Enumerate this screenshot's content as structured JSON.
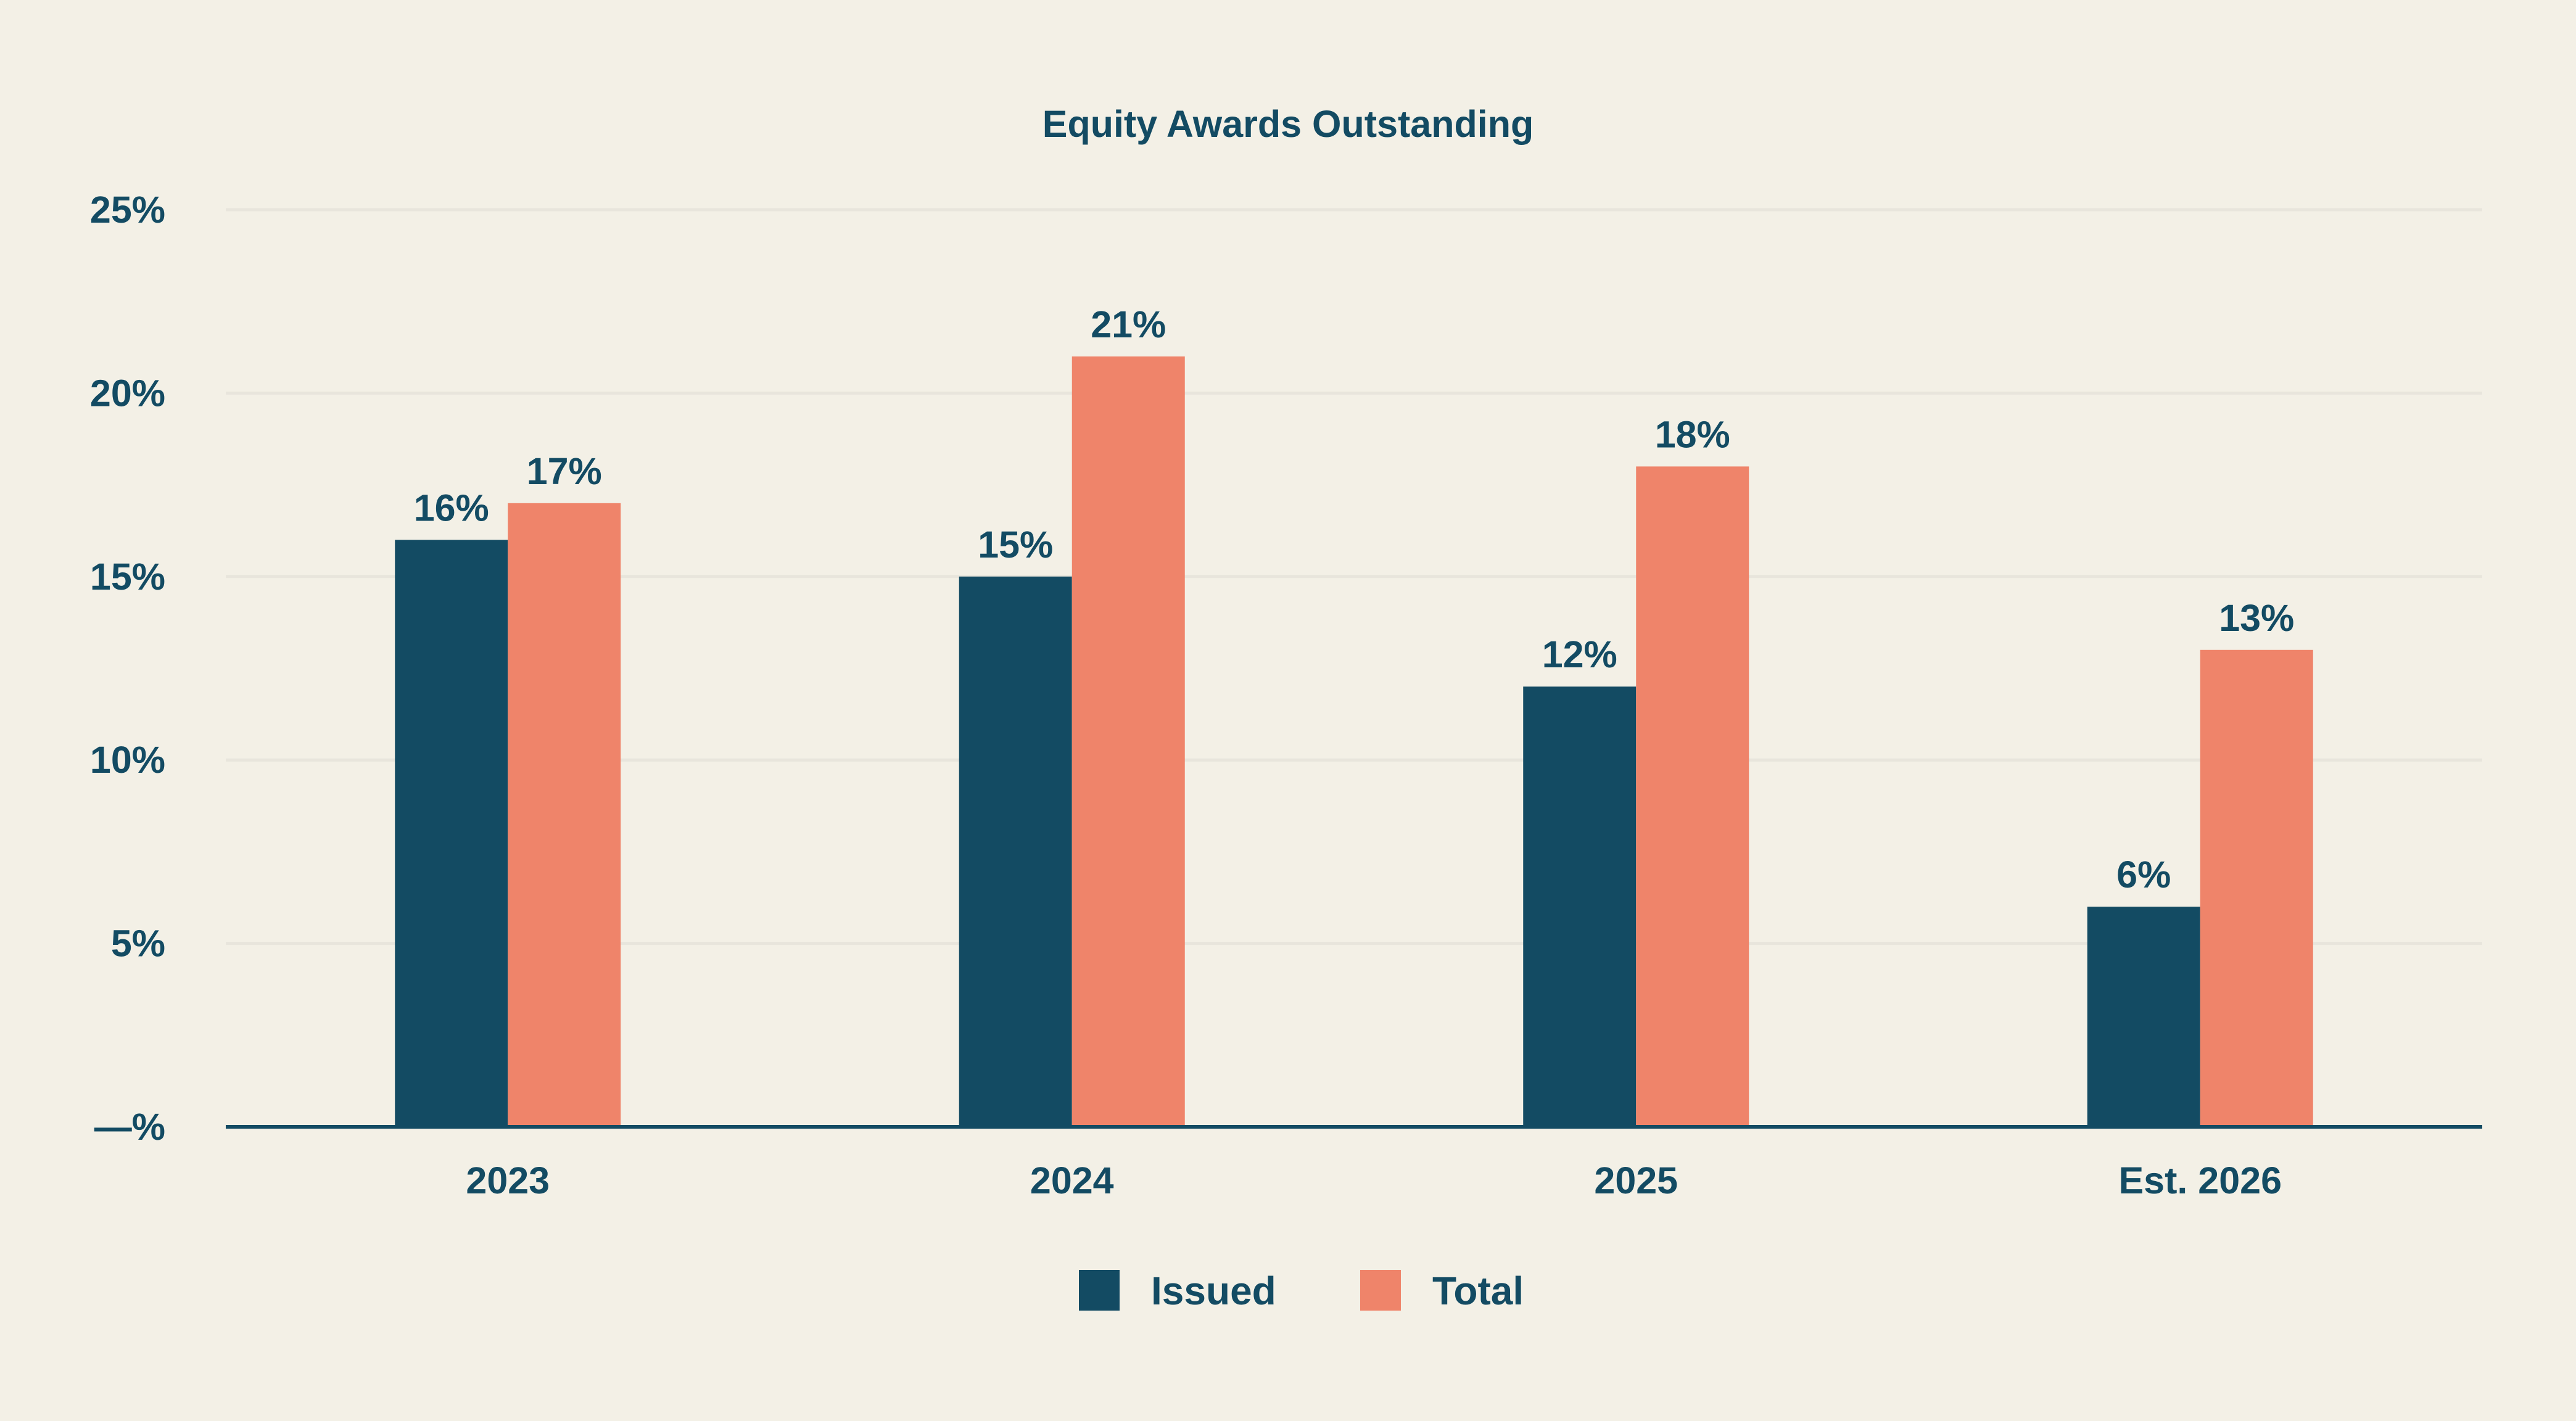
{
  "chart_data": {
    "type": "bar",
    "title": "Equity Awards Outstanding",
    "xlabel": "",
    "ylabel": "",
    "categories": [
      "2023",
      "2024",
      "2025",
      "Est. 2026"
    ],
    "series": [
      {
        "name": "Issued",
        "values": [
          16,
          15,
          12,
          6
        ],
        "labels": [
          "16%",
          "15%",
          "12%",
          "6%"
        ],
        "color": "#134b63"
      },
      {
        "name": "Total",
        "values": [
          17,
          21,
          18,
          13
        ],
        "labels": [
          "17%",
          "21%",
          "18%",
          "13%"
        ],
        "color": "#ef846a"
      }
    ],
    "ylim": [
      0,
      25
    ],
    "yticks": [
      0,
      5,
      10,
      15,
      20,
      25
    ],
    "ytick_labels": [
      "—%",
      "5%",
      "10%",
      "15%",
      "20%",
      "25%"
    ],
    "grid": true,
    "legend_position": "bottom-center"
  },
  "colors": {
    "background": "#f3f0e6",
    "text": "#134b63",
    "grid": "#e8e5dc",
    "axis": "#134b63"
  }
}
